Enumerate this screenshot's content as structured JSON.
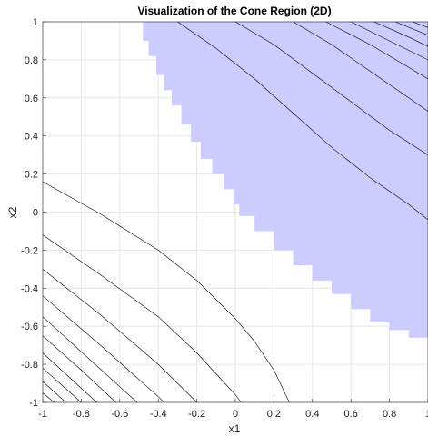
{
  "chart_data": {
    "type": "area",
    "title": "Visualization of the Cone Region (2D)",
    "xlabel": "x1",
    "ylabel": "x2",
    "xlim": [
      -1,
      1
    ],
    "ylim": [
      -1,
      1
    ],
    "x_ticks": [
      "-1",
      "-0.8",
      "-0.6",
      "-0.4",
      "-0.2",
      "0",
      "0.2",
      "0.4",
      "0.6",
      "0.8",
      "1"
    ],
    "y_ticks": [
      "-1",
      "-0.8",
      "-0.6",
      "-0.4",
      "-0.2",
      "0",
      "0.2",
      "0.4",
      "0.6",
      "0.8",
      "1"
    ],
    "grid": true,
    "colors": {
      "region": "#ccccff",
      "contour": "#000000",
      "grid": "#e6e6e6"
    },
    "region_boundary": [
      [
        -0.53,
        1.0
      ],
      [
        -0.48,
        0.9
      ],
      [
        -0.45,
        0.82
      ],
      [
        -0.41,
        0.72
      ],
      [
        -0.37,
        0.64
      ],
      [
        -0.33,
        0.56
      ],
      [
        -0.28,
        0.46
      ],
      [
        -0.23,
        0.37
      ],
      [
        -0.18,
        0.28
      ],
      [
        -0.12,
        0.2
      ],
      [
        -0.06,
        0.12
      ],
      [
        -0.01,
        0.04
      ],
      [
        0.02,
        -0.02
      ],
      [
        0.1,
        -0.1
      ],
      [
        0.2,
        -0.2
      ],
      [
        0.3,
        -0.28
      ],
      [
        0.4,
        -0.36
      ],
      [
        0.5,
        -0.43
      ],
      [
        0.6,
        -0.51
      ],
      [
        0.7,
        -0.58
      ],
      [
        0.8,
        -0.62
      ],
      [
        0.9,
        -0.66
      ],
      [
        1.0,
        -0.68
      ]
    ],
    "contour_lines": [
      [
        [
          -0.3,
          1.0
        ],
        [
          -0.1,
          0.86
        ],
        [
          0.1,
          0.7
        ],
        [
          0.3,
          0.52
        ],
        [
          0.5,
          0.34
        ],
        [
          0.7,
          0.18
        ],
        [
          0.9,
          0.04
        ],
        [
          1.0,
          -0.04
        ]
      ],
      [
        [
          0.0,
          1.0
        ],
        [
          0.2,
          0.88
        ],
        [
          0.4,
          0.73
        ],
        [
          0.6,
          0.58
        ],
        [
          0.8,
          0.43
        ],
        [
          1.0,
          0.3
        ]
      ],
      [
        [
          0.3,
          1.0
        ],
        [
          0.5,
          0.88
        ],
        [
          0.7,
          0.74
        ],
        [
          0.9,
          0.6
        ],
        [
          1.0,
          0.53
        ]
      ],
      [
        [
          0.47,
          1.0
        ],
        [
          0.7,
          0.88
        ],
        [
          0.9,
          0.76
        ],
        [
          1.0,
          0.7
        ]
      ],
      [
        [
          0.6,
          1.0
        ],
        [
          0.8,
          0.9
        ],
        [
          1.0,
          0.8
        ]
      ],
      [
        [
          0.72,
          1.0
        ],
        [
          0.9,
          0.92
        ],
        [
          1.0,
          0.87
        ]
      ],
      [
        [
          0.83,
          1.0
        ],
        [
          1.0,
          0.93
        ]
      ],
      [
        [
          0.92,
          1.0
        ],
        [
          1.0,
          0.97
        ]
      ],
      [
        [
          -1.0,
          0.16
        ],
        [
          -0.7,
          -0.01
        ],
        [
          -0.4,
          -0.2
        ],
        [
          -0.2,
          -0.36
        ],
        [
          0.0,
          -0.56
        ],
        [
          0.1,
          -0.68
        ],
        [
          0.2,
          -0.83
        ],
        [
          0.28,
          -1.0
        ]
      ],
      [
        [
          -1.0,
          -0.12
        ],
        [
          -0.7,
          -0.33
        ],
        [
          -0.4,
          -0.55
        ],
        [
          -0.2,
          -0.74
        ],
        [
          0.0,
          -0.96
        ],
        [
          0.03,
          -1.0
        ]
      ],
      [
        [
          -1.0,
          -0.3
        ],
        [
          -0.7,
          -0.54
        ],
        [
          -0.4,
          -0.8
        ],
        [
          -0.2,
          -1.0
        ]
      ],
      [
        [
          -1.0,
          -0.44
        ],
        [
          -0.7,
          -0.7
        ],
        [
          -0.4,
          -0.97
        ],
        [
          -0.37,
          -1.0
        ]
      ],
      [
        [
          -1.0,
          -0.55
        ],
        [
          -0.75,
          -0.78
        ],
        [
          -0.51,
          -1.0
        ]
      ],
      [
        [
          -1.0,
          -0.65
        ],
        [
          -0.8,
          -0.83
        ],
        [
          -0.62,
          -1.0
        ]
      ],
      [
        [
          -1.0,
          -0.74
        ],
        [
          -0.72,
          -1.0
        ]
      ],
      [
        [
          -1.0,
          -0.82
        ],
        [
          -0.8,
          -1.0
        ]
      ],
      [
        [
          -1.0,
          -0.89
        ],
        [
          -0.88,
          -1.0
        ]
      ],
      [
        [
          -1.0,
          -0.95
        ],
        [
          -0.94,
          -1.0
        ]
      ]
    ]
  }
}
